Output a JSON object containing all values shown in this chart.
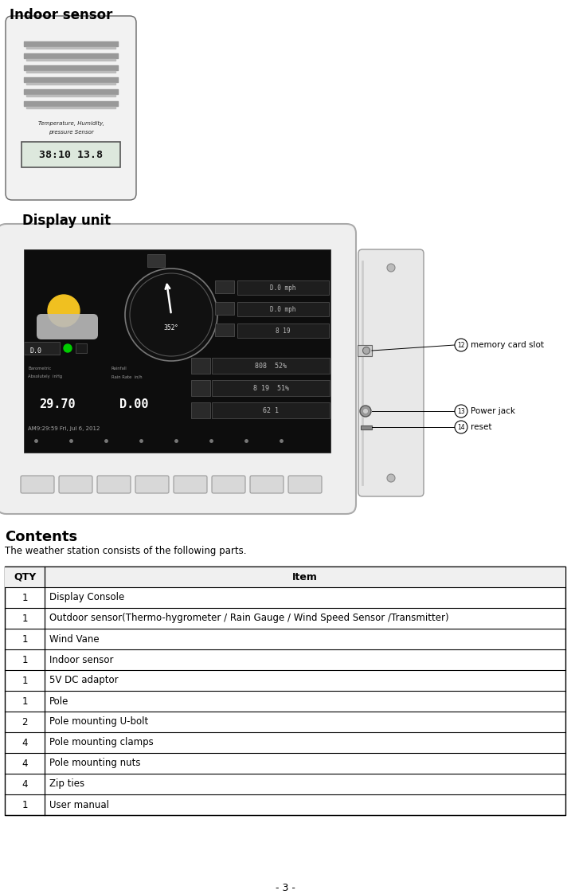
{
  "indoor_sensor_label": "Indoor sensor",
  "display_unit_label": "Display unit",
  "contents_title": "Contents",
  "contents_subtitle": "The weather station consists of the following parts.",
  "table_headers": [
    "QTY",
    "Item"
  ],
  "table_rows": [
    [
      "1",
      "Display Console"
    ],
    [
      "1",
      "Outdoor sensor(Thermo-hygrometer / Rain Gauge / Wind Speed Sensor /Transmitter)"
    ],
    [
      "1",
      "Wind Vane"
    ],
    [
      "1",
      "Indoor sensor"
    ],
    [
      "1",
      "5V DC adaptor"
    ],
    [
      "1",
      "Pole"
    ],
    [
      "2",
      "Pole mounting U-bolt"
    ],
    [
      "4",
      "Pole mounting clamps"
    ],
    [
      "4",
      "Pole mounting nuts"
    ],
    [
      "4",
      "Zip ties"
    ],
    [
      "1",
      "User manual"
    ]
  ],
  "page_number": "- 3 -",
  "bg_color": "#ffffff",
  "text_color": "#000000",
  "sensor_text1": "Temperature, Humidity,",
  "sensor_text2": "pressure Sensor",
  "sensor_display": "38:10 13.8",
  "screen_lines": [
    "Barometric",
    "Absolutely  inHg",
    "29.70",
    "Rainfall",
    "Rain Rate  in/h",
    "0.00",
    "AM9:29:59 Fri, Jul 6, 2012"
  ],
  "ann12_label": "memory card slot",
  "ann13_label": "Power jack",
  "ann14_label": "reset"
}
